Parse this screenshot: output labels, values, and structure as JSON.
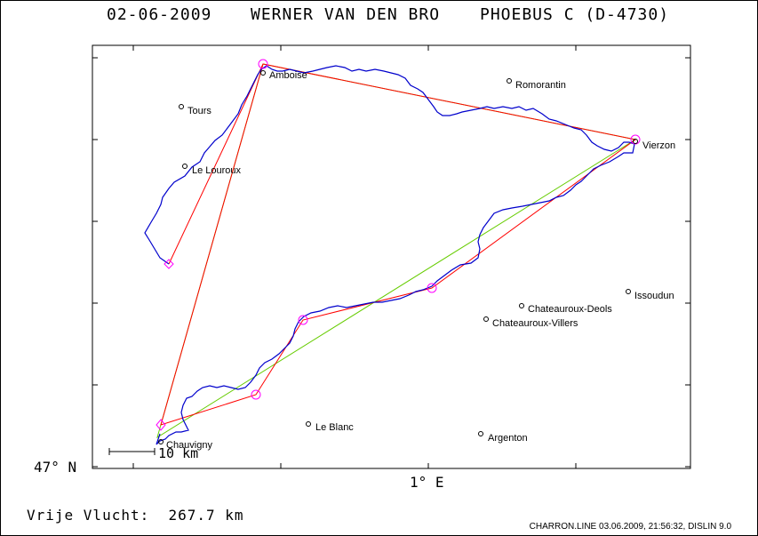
{
  "header": {
    "date": "02-06-2009",
    "pilot": "WERNER VAN DEN BRO",
    "glider": "PHOEBUS C (D-4730)"
  },
  "axes": {
    "lat_label": "47° N",
    "lon_label": "1° E",
    "scale_label": "10 km"
  },
  "places": [
    {
      "name": "Amboise"
    },
    {
      "name": "Romorantin"
    },
    {
      "name": "Tours"
    },
    {
      "name": "Vierzon"
    },
    {
      "name": "Le Louroux"
    },
    {
      "name": "Issoudun"
    },
    {
      "name": "Chateauroux-Deols"
    },
    {
      "name": "Chateauroux-Villers"
    },
    {
      "name": "Le Blanc"
    },
    {
      "name": "Argenton"
    },
    {
      "name": "Chauvigny"
    }
  ],
  "footer": {
    "distance_label": "Vrije Vlucht:",
    "distance_value": "267.7 km",
    "file_info": "CHARRON.LINE 03.06.2009, 21:56:32, DISLIN 9.0"
  },
  "colors": {
    "track": "#0000cc",
    "optimized_route": "#ff0000",
    "declared_route": "#66cc00",
    "turnpoint": "#ff00ff"
  }
}
